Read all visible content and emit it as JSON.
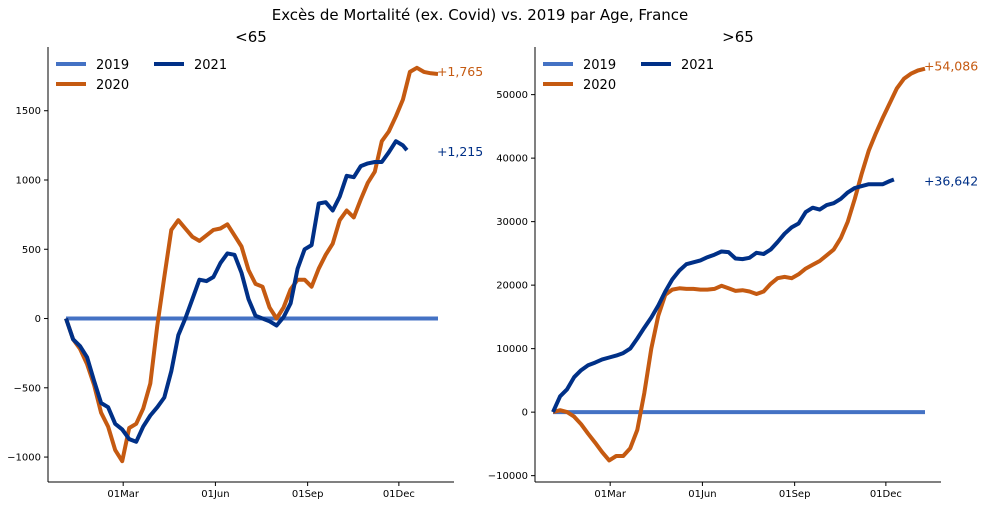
{
  "title": "Excès de Mortalité (ex. Covid) vs. 2019 par Age, France",
  "colors": {
    "y2019": "#4472c4",
    "y2020": "#c55a11",
    "y2021": "#003087",
    "axis": "#000000"
  },
  "chart_data": [
    {
      "type": "line",
      "title": "<65",
      "x_unit": "day of year",
      "x_ticks": [
        {
          "x": 60,
          "label": "01Mar"
        },
        {
          "x": 152,
          "label": "01Jun"
        },
        {
          "x": 244,
          "label": "01Sep"
        },
        {
          "x": 335,
          "label": "01Dec"
        }
      ],
      "xlim": [
        -15,
        390
      ],
      "ylim": [
        -1180,
        1960
      ],
      "y_ticks": [
        -1000,
        -500,
        0,
        500,
        1000,
        1500
      ],
      "legend": {
        "placement": "top-left",
        "entries": [
          "2019",
          "2021",
          "2020"
        ]
      },
      "series": [
        {
          "name": "2019",
          "color_key": "y2019",
          "x": [
            3,
            374
          ],
          "y": [
            0,
            0
          ]
        },
        {
          "name": "2020",
          "color_key": "y2020",
          "end_label": "+1,765",
          "x": [
            3,
            10,
            17,
            24,
            31,
            38,
            45,
            52,
            59,
            66,
            73,
            80,
            87,
            94,
            101,
            108,
            115,
            122,
            129,
            136,
            143,
            150,
            157,
            164,
            171,
            178,
            185,
            192,
            199,
            206,
            213,
            220,
            227,
            234,
            241,
            248,
            255,
            262,
            269,
            276,
            283,
            290,
            297,
            304,
            311,
            318,
            325,
            332,
            339,
            346,
            353,
            360,
            367,
            374
          ],
          "y": [
            0,
            -150,
            -220,
            -330,
            -480,
            -680,
            -780,
            -950,
            -1030,
            -790,
            -760,
            -650,
            -470,
            -50,
            300,
            640,
            710,
            650,
            590,
            560,
            600,
            640,
            650,
            680,
            600,
            520,
            350,
            250,
            230,
            80,
            0,
            80,
            210,
            280,
            280,
            230,
            360,
            460,
            540,
            710,
            780,
            730,
            860,
            980,
            1060,
            1280,
            1350,
            1460,
            1580,
            1780,
            1810,
            1780,
            1770,
            1765
          ]
        },
        {
          "name": "2021",
          "color_key": "y2021",
          "end_label": "+1,215",
          "x": [
            3,
            10,
            17,
            24,
            31,
            38,
            45,
            52,
            59,
            66,
            73,
            80,
            87,
            94,
            101,
            108,
            115,
            122,
            129,
            136,
            143,
            150,
            157,
            164,
            171,
            178,
            185,
            192,
            199,
            206,
            213,
            220,
            227,
            234,
            241,
            248,
            255,
            262,
            269,
            276,
            283,
            290,
            297,
            304,
            311,
            318,
            325,
            332,
            339,
            343
          ],
          "y": [
            0,
            -150,
            -200,
            -280,
            -450,
            -610,
            -640,
            -760,
            -800,
            -870,
            -890,
            -780,
            -700,
            -640,
            -570,
            -380,
            -120,
            0,
            140,
            280,
            270,
            300,
            400,
            470,
            460,
            330,
            140,
            20,
            0,
            -20,
            -50,
            10,
            110,
            360,
            500,
            530,
            830,
            840,
            780,
            880,
            1030,
            1020,
            1100,
            1120,
            1130,
            1130,
            1200,
            1280,
            1250,
            1215
          ]
        }
      ]
    },
    {
      "type": "line",
      "title": ">65",
      "x_unit": "day of year",
      "x_ticks": [
        {
          "x": 60,
          "label": "01Mar"
        },
        {
          "x": 152,
          "label": "01Jun"
        },
        {
          "x": 244,
          "label": "01Sep"
        },
        {
          "x": 335,
          "label": "01Dec"
        }
      ],
      "xlim": [
        -15,
        390
      ],
      "ylim": [
        -11000,
        57500
      ],
      "y_ticks": [
        -10000,
        0,
        10000,
        20000,
        30000,
        40000,
        50000
      ],
      "legend": {
        "placement": "top-left",
        "entries": [
          "2019",
          "2021",
          "2020"
        ]
      },
      "series": [
        {
          "name": "2019",
          "color_key": "y2019",
          "x": [
            3,
            374
          ],
          "y": [
            0,
            0
          ]
        },
        {
          "name": "2020",
          "color_key": "y2020",
          "end_label": "+54,086",
          "x": [
            3,
            10,
            17,
            24,
            31,
            38,
            45,
            52,
            59,
            66,
            73,
            80,
            87,
            94,
            101,
            108,
            115,
            122,
            129,
            136,
            143,
            150,
            157,
            164,
            171,
            178,
            185,
            192,
            199,
            206,
            213,
            220,
            227,
            234,
            241,
            248,
            255,
            262,
            269,
            276,
            283,
            290,
            297,
            304,
            311,
            318,
            325,
            332,
            339,
            346,
            353,
            360,
            367,
            374
          ],
          "y": [
            0,
            300,
            0,
            -700,
            -1900,
            -3400,
            -4800,
            -6300,
            -7600,
            -6900,
            -6900,
            -5700,
            -2800,
            3000,
            10000,
            15200,
            18500,
            19300,
            19500,
            19400,
            19400,
            19300,
            19300,
            19400,
            19900,
            19500,
            19100,
            19200,
            19000,
            18600,
            19000,
            20200,
            21100,
            21300,
            21100,
            21700,
            22600,
            23200,
            23800,
            24700,
            25600,
            27400,
            30000,
            33600,
            37600,
            41200,
            43900,
            46400,
            48700,
            51000,
            52500,
            53300,
            53800,
            54086
          ]
        },
        {
          "name": "2021",
          "color_key": "y2021",
          "end_label": "+36,642",
          "x": [
            3,
            10,
            17,
            24,
            31,
            38,
            45,
            52,
            59,
            66,
            73,
            80,
            87,
            94,
            101,
            108,
            115,
            122,
            129,
            136,
            143,
            150,
            157,
            164,
            171,
            178,
            185,
            192,
            199,
            206,
            213,
            220,
            227,
            234,
            241,
            248,
            255,
            262,
            269,
            276,
            283,
            290,
            297,
            304,
            311,
            318,
            325,
            332,
            339,
            343
          ],
          "y": [
            0,
            2500,
            3600,
            5500,
            6600,
            7400,
            7800,
            8300,
            8600,
            8900,
            9300,
            10000,
            11600,
            13300,
            14900,
            16800,
            19000,
            20900,
            22300,
            23300,
            23600,
            23900,
            24400,
            24800,
            25300,
            25200,
            24200,
            24100,
            24300,
            25100,
            24900,
            25600,
            26800,
            28100,
            29100,
            29700,
            31500,
            32200,
            31900,
            32600,
            32900,
            33600,
            34600,
            35300,
            35600,
            35900,
            35900,
            35900,
            36400,
            36642
          ]
        }
      ]
    }
  ]
}
